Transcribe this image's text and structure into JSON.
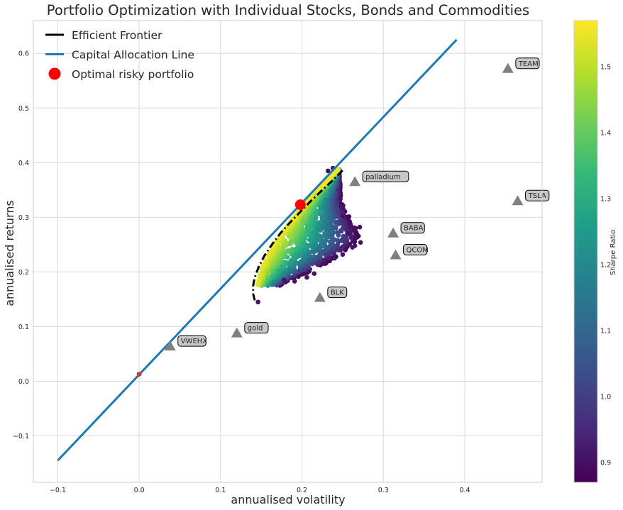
{
  "chart_data": {
    "type": "scatter",
    "title": "Portfolio Optimization with Individual Stocks, Bonds and Commodities",
    "xlabel": "annualised volatility",
    "ylabel": "annualised returns",
    "xlim": [
      -0.13,
      0.495
    ],
    "ylim": [
      -0.185,
      0.66
    ],
    "xticks": [
      -0.1,
      0.0,
      0.1,
      0.2,
      0.3,
      0.4
    ],
    "xtick_labels": [
      "−0.1",
      "0.0",
      "0.1",
      "0.2",
      "0.3",
      "0.4"
    ],
    "yticks": [
      -0.1,
      0.0,
      0.1,
      0.2,
      0.3,
      0.4,
      0.5,
      0.6
    ],
    "ytick_labels": [
      "−0.1",
      "0.0",
      "0.1",
      "0.2",
      "0.3",
      "0.4",
      "0.5",
      "0.6"
    ],
    "grid": true,
    "legend": {
      "position": "top-left",
      "entries": [
        {
          "label": "Efficient Frontier",
          "kind": "line",
          "color": "#000000"
        },
        {
          "label": "Capital Allocation Line",
          "kind": "line",
          "color": "#1f77b4"
        },
        {
          "label": "Optimal risky portfolio",
          "kind": "marker",
          "color": "#ff0000"
        }
      ]
    },
    "colorbar": {
      "label": "Sharpe Ratio",
      "range": [
        0.87,
        1.57
      ],
      "ticks": [
        0.9,
        1.0,
        1.1,
        1.2,
        1.3,
        1.4,
        1.5
      ],
      "tick_labels": [
        "0.9",
        "1.0",
        "1.1",
        "1.2",
        "1.3",
        "1.4",
        "1.5"
      ],
      "colormap": "viridis"
    },
    "series": [
      {
        "name": "Capital Allocation Line",
        "kind": "line",
        "color": "#1f77b4",
        "points": [
          [
            -0.1,
            -0.145
          ],
          [
            0.39,
            0.625
          ]
        ]
      },
      {
        "name": "Efficient Frontier",
        "kind": "dashdot-line",
        "color": "#000000",
        "points": [
          [
            0.142,
            0.148
          ],
          [
            0.14,
            0.16
          ],
          [
            0.14,
            0.175
          ],
          [
            0.142,
            0.19
          ],
          [
            0.147,
            0.21
          ],
          [
            0.154,
            0.23
          ],
          [
            0.163,
            0.25
          ],
          [
            0.173,
            0.27
          ],
          [
            0.185,
            0.29
          ],
          [
            0.198,
            0.31
          ],
          [
            0.211,
            0.33
          ],
          [
            0.225,
            0.35
          ],
          [
            0.238,
            0.368
          ],
          [
            0.25,
            0.386
          ]
        ]
      },
      {
        "name": "Optimal risky portfolio",
        "kind": "marker",
        "color": "#ff0000",
        "points": [
          [
            0.198,
            0.323
          ]
        ]
      },
      {
        "name": "risk-free",
        "kind": "marker",
        "color": "#ce3a3a",
        "points": [
          [
            0.0,
            0.013
          ]
        ]
      }
    ],
    "assets": [
      {
        "label": "TEAM",
        "x": 0.453,
        "y": 0.572
      },
      {
        "label": "TSLA",
        "x": 0.465,
        "y": 0.33
      },
      {
        "label": "palladium",
        "x": 0.265,
        "y": 0.365
      },
      {
        "label": "BABA",
        "x": 0.312,
        "y": 0.271
      },
      {
        "label": "QCOM",
        "x": 0.315,
        "y": 0.231
      },
      {
        "label": "BLK",
        "x": 0.222,
        "y": 0.153
      },
      {
        "label": "gold",
        "x": 0.12,
        "y": 0.088
      },
      {
        "label": "VWEHX",
        "x": 0.038,
        "y": 0.064
      }
    ],
    "simulated_portfolios": {
      "count": 1800,
      "region": {
        "frontier_top": [
          [
            0.145,
            0.175
          ],
          [
            0.15,
            0.205
          ],
          [
            0.16,
            0.235
          ],
          [
            0.172,
            0.265
          ],
          [
            0.185,
            0.29
          ],
          [
            0.198,
            0.315
          ],
          [
            0.212,
            0.34
          ],
          [
            0.226,
            0.36
          ],
          [
            0.238,
            0.378
          ],
          [
            0.246,
            0.39
          ]
        ],
        "lower_boundary": [
          [
            0.148,
            0.15
          ],
          [
            0.165,
            0.168
          ],
          [
            0.185,
            0.185
          ],
          [
            0.205,
            0.197
          ],
          [
            0.225,
            0.212
          ],
          [
            0.245,
            0.228
          ],
          [
            0.262,
            0.245
          ],
          [
            0.272,
            0.262
          ],
          [
            0.262,
            0.29
          ],
          [
            0.248,
            0.33
          ],
          [
            0.246,
            0.39
          ]
        ]
      },
      "sharpe_range": [
        0.87,
        1.57
      ],
      "outliers": [
        [
          0.146,
          0.145
        ],
        [
          0.178,
          0.185
        ],
        [
          0.191,
          0.183
        ],
        [
          0.206,
          0.19
        ],
        [
          0.215,
          0.197
        ],
        [
          0.228,
          0.215
        ],
        [
          0.24,
          0.225
        ],
        [
          0.25,
          0.232
        ],
        [
          0.262,
          0.245
        ],
        [
          0.265,
          0.248
        ],
        [
          0.272,
          0.254
        ],
        [
          0.271,
          0.282
        ],
        [
          0.266,
          0.28
        ],
        [
          0.26,
          0.285
        ],
        [
          0.257,
          0.271
        ],
        [
          0.25,
          0.302
        ],
        [
          0.232,
          0.385
        ],
        [
          0.238,
          0.39
        ]
      ]
    }
  }
}
